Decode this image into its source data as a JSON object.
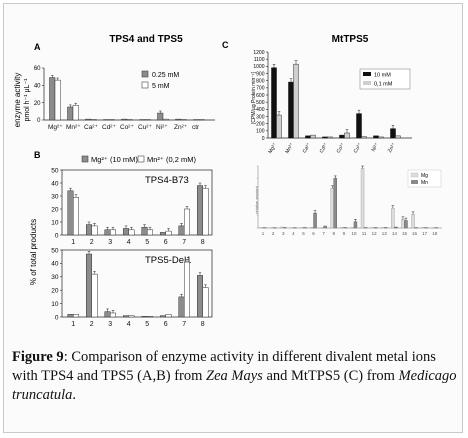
{
  "panels": {
    "A": {
      "label": "A",
      "title": "TPS4 and TPS5",
      "ylabel_line1": "enzyme activity",
      "ylabel_line2": "pmol h⁻¹ μL⁻¹",
      "legend": [
        "0.25 mM",
        "5 mM"
      ]
    },
    "B": {
      "label": "B",
      "legend": [
        "Mg²⁺ (10 mM)",
        "Mn²⁺ (0,2 mM)"
      ],
      "ylabel": "% of total products",
      "top_title": "TPS4-B73",
      "bottom_title": "TPS5-Del1"
    },
    "C": {
      "label": "C",
      "title": "MtTPS5",
      "ylabel": "[CPM/µg Protein min⁻¹]",
      "legend": [
        "10 mM",
        "0,1 mM"
      ],
      "bottom_legend": [
        "Mg",
        "Mn"
      ],
      "bottom_ylabel": "relative amount"
    }
  },
  "chart_data": [
    {
      "id": "A",
      "type": "bar",
      "title": "TPS4 and TPS5",
      "categories": [
        "Mg²⁺",
        "Mn²⁺",
        "Ca²⁺",
        "Cd²⁺",
        "Co²⁺",
        "Cu²⁺",
        "Ni²⁺",
        "Zn²⁺",
        "ctr"
      ],
      "series": [
        {
          "name": "0.25 mM",
          "values": [
            49,
            15,
            1,
            0.5,
            1,
            0.5,
            8,
            1,
            0.5
          ]
        },
        {
          "name": "5 mM",
          "values": [
            46,
            17,
            0.5,
            0.5,
            0.5,
            0.5,
            1,
            0.5,
            0.5
          ]
        }
      ],
      "ylim": [
        0,
        60
      ],
      "yticks": [
        0,
        20,
        40,
        60
      ],
      "colors": [
        "#8c8c8c",
        "#ffffff"
      ]
    },
    {
      "id": "B-top",
      "type": "bar",
      "title": "TPS4-B73",
      "categories": [
        "1",
        "2",
        "3",
        "4",
        "5",
        "6",
        "7",
        "8"
      ],
      "series": [
        {
          "name": "Mg²⁺ (10 mM)",
          "values": [
            34,
            8,
            4,
            5,
            6,
            2,
            7,
            38
          ]
        },
        {
          "name": "Mn²⁺ (0,2 mM)",
          "values": [
            29,
            7,
            4,
            4,
            4,
            3,
            20,
            36
          ]
        }
      ],
      "ylim": [
        0,
        50
      ],
      "yticks": [
        0,
        10,
        20,
        30,
        40,
        50
      ],
      "colors": [
        "#8c8c8c",
        "#ffffff"
      ]
    },
    {
      "id": "B-bottom",
      "type": "bar",
      "title": "TPS5-Del1",
      "categories": [
        "1",
        "2",
        "3",
        "4",
        "5",
        "6",
        "7",
        "8"
      ],
      "series": [
        {
          "name": "Mg²⁺ (10 mM)",
          "values": [
            2,
            47,
            4,
            1,
            0.5,
            1,
            15,
            31
          ]
        },
        {
          "name": "Mn²⁺ (0,2 mM)",
          "values": [
            2,
            32,
            3,
            1,
            0.5,
            2,
            41,
            22
          ]
        }
      ],
      "ylim": [
        0,
        50
      ],
      "yticks": [
        0,
        10,
        20,
        30,
        40,
        50
      ],
      "colors": [
        "#8c8c8c",
        "#ffffff"
      ]
    },
    {
      "id": "C-top",
      "type": "bar",
      "title": "MtTPS5",
      "categories": [
        "Mg²⁺",
        "Mn²⁺",
        "Ca²⁺",
        "Cd²⁺",
        "Co²⁺",
        "Cu²⁺",
        "Ni²⁺",
        "Zn²⁺"
      ],
      "series": [
        {
          "name": "10 mM",
          "values": [
            980,
            780,
            30,
            15,
            40,
            340,
            30,
            130
          ]
        },
        {
          "name": "0,1 mM",
          "values": [
            320,
            1030,
            40,
            15,
            70,
            20,
            15,
            30
          ]
        }
      ],
      "ylim": [
        0,
        1200
      ],
      "yticks": [
        0,
        100,
        200,
        300,
        400,
        500,
        600,
        700,
        800,
        900,
        1000,
        1100,
        1200
      ],
      "colors": [
        "#111111",
        "#cfcfcf"
      ]
    },
    {
      "id": "C-bottom",
      "type": "bar",
      "categories": [
        "1",
        "2",
        "3",
        "4",
        "5",
        "6",
        "7",
        "8",
        "9",
        "10",
        "11",
        "12",
        "13",
        "14",
        "15",
        "16",
        "17",
        "18"
      ],
      "series": [
        {
          "name": "Mg",
          "values": [
            1,
            1,
            4,
            1,
            2,
            3,
            1,
            160,
            3,
            2,
            240,
            2,
            2,
            80,
            35,
            55,
            3,
            1
          ]
        },
        {
          "name": "Mn",
          "values": [
            1,
            1,
            2,
            1,
            2,
            60,
            8,
            200,
            2,
            25,
            2,
            2,
            2,
            4,
            30,
            2,
            1,
            1
          ]
        }
      ],
      "ylim": [
        0,
        250
      ],
      "colors": [
        "#dcdcdc",
        "#8a8a8a"
      ]
    }
  ],
  "caption": {
    "label": "Figure 9",
    "text1": ": Comparison of enzyme activity in different divalent metal ions with TPS4 and TPS5 (A,B) from ",
    "species1": "Zea Mays",
    "text2": " and MtTPS5 (C) from ",
    "species2": "Medicago truncatula",
    "text3": "."
  }
}
